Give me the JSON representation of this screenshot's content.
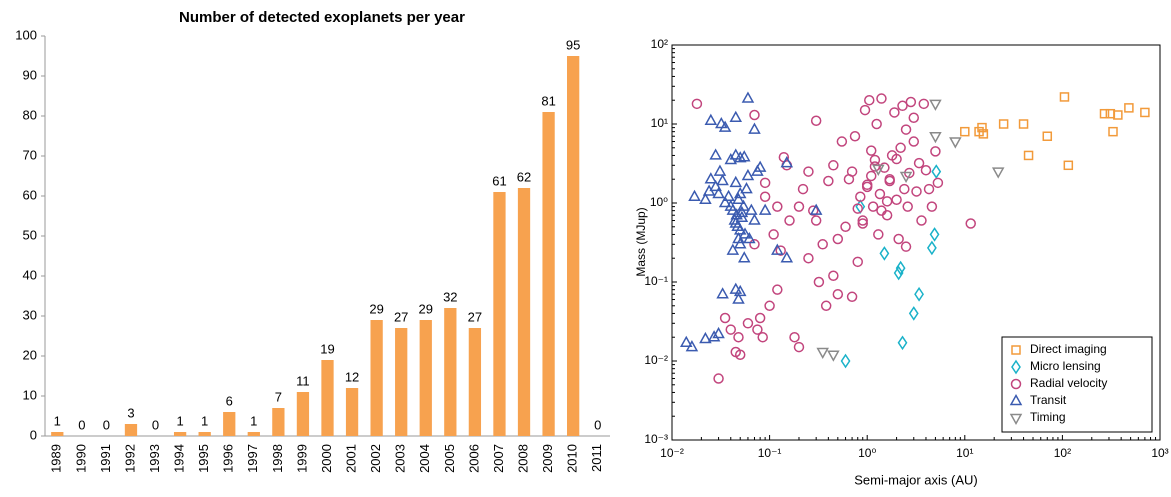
{
  "chart_data": [
    {
      "type": "bar",
      "title": "Number of detected exoplanets per year",
      "categories": [
        "1989",
        "1990",
        "1991",
        "1992",
        "1993",
        "1994",
        "1995",
        "1996",
        "1997",
        "1998",
        "1999",
        "2000",
        "2001",
        "2002",
        "2003",
        "2004",
        "2005",
        "2006",
        "2007",
        "2008",
        "2009",
        "2010",
        "2011"
      ],
      "values": [
        1,
        0,
        0,
        3,
        0,
        1,
        1,
        6,
        1,
        7,
        11,
        19,
        12,
        29,
        27,
        29,
        32,
        27,
        61,
        62,
        81,
        95,
        0
      ],
      "color": "#f7a24f",
      "ylim": [
        0,
        100
      ],
      "yticks": [
        0,
        10,
        20,
        30,
        40,
        50,
        60,
        70,
        80,
        90,
        100
      ],
      "grid": false
    },
    {
      "type": "scatter",
      "xlabel": "Semi-major axis (AU)",
      "ylabel": "Mass (MJup)",
      "xscale": "log",
      "yscale": "log",
      "xlim": [
        0.01,
        1000
      ],
      "ylim": [
        0.001,
        100
      ],
      "xticks": [
        {
          "value": 0.01,
          "label": "10⁻²"
        },
        {
          "value": 0.1,
          "label": "10⁻¹"
        },
        {
          "value": 1,
          "label": "10⁰"
        },
        {
          "value": 10,
          "label": "10¹"
        },
        {
          "value": 100,
          "label": "10²"
        },
        {
          "value": 1000,
          "label": "10³"
        }
      ],
      "yticks": [
        {
          "value": 0.001,
          "label": "10⁻³"
        },
        {
          "value": 0.01,
          "label": "10⁻²"
        },
        {
          "value": 0.1,
          "label": "10⁻¹"
        },
        {
          "value": 1,
          "label": "10⁰"
        },
        {
          "value": 10,
          "label": "10¹"
        },
        {
          "value": 100,
          "label": "10²"
        }
      ],
      "legend": "lower right",
      "series": [
        {
          "name": "Direct imaging",
          "color": "#f29a3a",
          "marker": "square",
          "x": [
            10,
            14,
            15,
            15.5,
            25,
            40,
            45,
            70,
            105,
            115,
            270,
            310,
            330,
            370,
            480,
            700
          ],
          "values": [
            8,
            8,
            9,
            7.5,
            10,
            10,
            4,
            7,
            22,
            3,
            13.5,
            13.5,
            8,
            13,
            16,
            14
          ]
        },
        {
          "name": "Micro lensing",
          "color": "#1ab2c9",
          "marker": "diamond",
          "x": [
            0.6,
            0.85,
            1.5,
            2.1,
            2.2,
            2.3,
            3,
            3.4,
            4.6,
            4.9,
            5.1
          ],
          "values": [
            0.01,
            0.9,
            0.23,
            0.13,
            0.15,
            0.017,
            0.04,
            0.07,
            0.27,
            0.4,
            2.5
          ]
        },
        {
          "name": "Radial velocity",
          "color": "#c2457d",
          "marker": "circle",
          "x": [
            0.018,
            0.03,
            0.035,
            0.04,
            0.045,
            0.05,
            0.048,
            0.06,
            0.07,
            0.075,
            0.08,
            0.085,
            0.09,
            0.1,
            0.11,
            0.12,
            0.13,
            0.14,
            0.15,
            0.16,
            0.18,
            0.2,
            0.22,
            0.25,
            0.28,
            0.3,
            0.32,
            0.35,
            0.38,
            0.4,
            0.45,
            0.5,
            0.55,
            0.6,
            0.65,
            0.7,
            0.75,
            0.8,
            0.85,
            0.9,
            0.95,
            1.0,
            1.05,
            1.1,
            1.15,
            1.2,
            1.25,
            1.3,
            1.35,
            1.4,
            1.5,
            1.6,
            1.7,
            1.8,
            1.9,
            2.0,
            2.1,
            2.2,
            2.3,
            2.4,
            2.5,
            2.6,
            2.7,
            2.8,
            3.0,
            3.2,
            3.4,
            3.6,
            3.8,
            4.0,
            4.3,
            4.6,
            5.0,
            5.3,
            11.5,
            0.07,
            0.09,
            0.12,
            0.2,
            0.3,
            0.45,
            0.7,
            1.0,
            1.4,
            2.0,
            3.0,
            0.9,
            1.2,
            1.6,
            2.5,
            0.25,
            0.5,
            0.8,
            1.1,
            1.7
          ],
          "values": [
            18,
            0.006,
            0.035,
            0.025,
            0.013,
            0.012,
            0.02,
            0.03,
            13,
            0.025,
            0.035,
            0.02,
            1.8,
            0.05,
            0.4,
            0.08,
            0.25,
            3.8,
            3,
            0.6,
            0.02,
            0.9,
            1.5,
            0.2,
            0.8,
            11,
            0.1,
            0.3,
            0.05,
            1.9,
            3,
            0.07,
            6,
            0.5,
            2,
            2.5,
            7,
            0.18,
            1.2,
            0.55,
            15,
            1.6,
            20,
            2.2,
            0.9,
            3.5,
            10,
            0.4,
            1.3,
            21,
            2.8,
            0.7,
            1.9,
            4,
            14,
            1.1,
            0.35,
            5,
            17,
            1.5,
            0.28,
            0.9,
            2.4,
            19,
            12,
            1.4,
            3.2,
            0.6,
            18,
            2.6,
            1.5,
            0.9,
            4.5,
            1.8,
            0.55,
            0.3,
            1.2,
            0.9,
            0.015,
            0.6,
            0.12,
            0.065,
            1.7,
            0.8,
            3.6,
            6,
            0.6,
            2.9,
            1.05,
            8.5,
            2.5,
            0.35,
            0.85,
            4.6,
            2.0
          ]
        },
        {
          "name": "Transit",
          "color": "#3b5bb0",
          "marker": "triangle-up",
          "x": [
            0.014,
            0.016,
            0.022,
            0.027,
            0.03,
            0.033,
            0.05,
            0.048,
            0.045,
            0.017,
            0.022,
            0.024,
            0.025,
            0.028,
            0.03,
            0.031,
            0.033,
            0.035,
            0.038,
            0.04,
            0.042,
            0.044,
            0.045,
            0.046,
            0.047,
            0.048,
            0.05,
            0.052,
            0.054,
            0.056,
            0.058,
            0.06,
            0.062,
            0.04,
            0.045,
            0.05,
            0.055,
            0.035,
            0.032,
            0.045,
            0.06,
            0.07,
            0.025,
            0.028,
            0.075,
            0.08,
            0.065,
            0.07,
            0.09,
            0.12,
            0.15,
            0.3,
            0.15,
            0.042,
            0.05,
            0.055,
            0.045,
            0.05,
            0.052,
            0.048
          ],
          "values": [
            0.017,
            0.015,
            0.019,
            0.02,
            0.022,
            0.07,
            0.075,
            0.06,
            0.08,
            1.2,
            1.1,
            1.4,
            2,
            1.6,
            1.3,
            2.5,
            1.9,
            1.0,
            1.2,
            0.9,
            0.8,
            0.6,
            0.55,
            0.7,
            0.5,
            1.1,
            0.45,
            0.65,
            0.9,
            0.4,
            1.5,
            2.2,
            0.35,
            3.5,
            4,
            3.7,
            3.8,
            9,
            10,
            12,
            21,
            8.5,
            11,
            4,
            2.5,
            2.8,
            0.8,
            0.6,
            0.8,
            0.25,
            0.2,
            0.8,
            3.2,
            0.25,
            0.3,
            0.2,
            1.8,
            1.3,
            0.75,
            0.35
          ]
        },
        {
          "name": "Timing",
          "color": "#8a8a8a",
          "marker": "triangle-down",
          "x": [
            0.35,
            0.45,
            1.3,
            2.5,
            5,
            5,
            8,
            22
          ],
          "values": [
            0.013,
            0.012,
            2.7,
            2.2,
            18,
            7,
            6,
            2.5
          ]
        }
      ]
    }
  ]
}
